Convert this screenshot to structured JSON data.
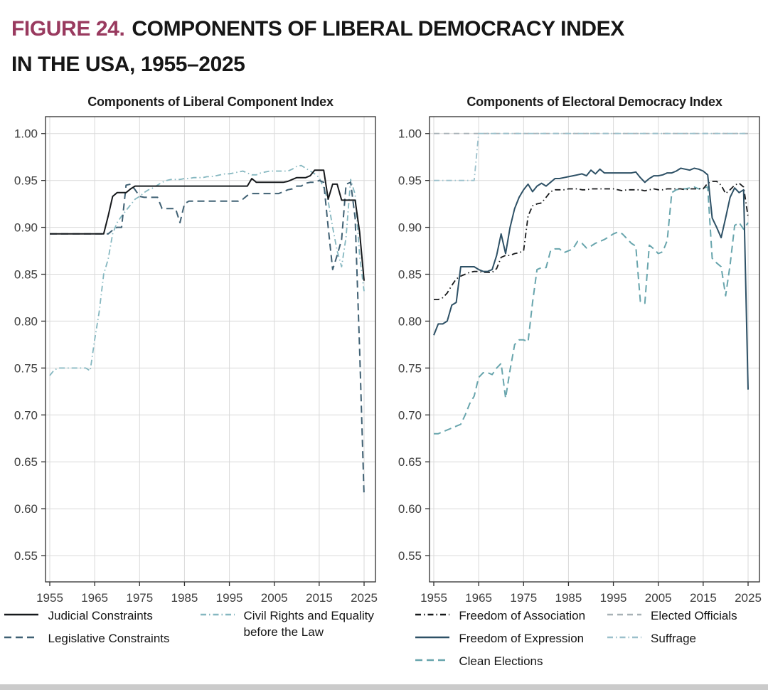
{
  "figure_title": {
    "label": "FIGURE 24.",
    "line1": "COMPONENTS OF LIBERAL DEMOCRACY INDEX",
    "line2": "IN THE USA, 1955–2025"
  },
  "theme": {
    "accent_label": "#993a5f",
    "grid": "#d9d9d9",
    "border": "#2e2e2e",
    "tick_text": "#3e3e3e",
    "background": "#ffffff",
    "footer_bar": "#cbcbcb"
  },
  "axes": {
    "ylim": [
      0.522,
      1.018
    ],
    "y_ticks": [
      1.0,
      0.95,
      0.9,
      0.85,
      0.8,
      0.75,
      0.7,
      0.65,
      0.6,
      0.55
    ],
    "x_ticks": [
      1955,
      1965,
      1975,
      1985,
      1995,
      2005,
      2015,
      2025
    ],
    "grid": true
  },
  "chart_data": [
    {
      "type": "line",
      "title": "Components of Liberal Component Index",
      "x_start": 1955,
      "x_end": 2025,
      "draw_order": [
        2,
        1,
        0
      ],
      "legend_columns": [
        [
          0,
          1
        ],
        [
          2
        ]
      ],
      "series": [
        {
          "name": "Judicial Constraints",
          "color": "#16191c",
          "dash": "",
          "width": 2,
          "values": [
            0.893,
            0.893,
            0.893,
            0.893,
            0.893,
            0.893,
            0.893,
            0.893,
            0.893,
            0.893,
            0.893,
            0.893,
            0.893,
            0.912,
            0.933,
            0.937,
            0.937,
            0.937,
            0.941,
            0.944,
            0.944,
            0.944,
            0.944,
            0.944,
            0.944,
            0.944,
            0.944,
            0.944,
            0.944,
            0.944,
            0.944,
            0.944,
            0.944,
            0.944,
            0.944,
            0.944,
            0.944,
            0.944,
            0.944,
            0.944,
            0.944,
            0.944,
            0.944,
            0.944,
            0.944,
            0.952,
            0.948,
            0.948,
            0.948,
            0.948,
            0.948,
            0.948,
            0.948,
            0.949,
            0.951,
            0.953,
            0.953,
            0.953,
            0.955,
            0.961,
            0.961,
            0.961,
            0.93,
            0.946,
            0.946,
            0.929,
            0.929,
            0.929,
            0.929,
            0.895,
            0.843
          ]
        },
        {
          "name": "Legislative Constraints",
          "color": "#3f6073",
          "dash": "10,6",
          "width": 2,
          "values": [
            0.893,
            0.893,
            0.893,
            0.893,
            0.893,
            0.893,
            0.893,
            0.893,
            0.893,
            0.893,
            0.893,
            0.893,
            0.893,
            0.893,
            0.897,
            0.9,
            0.9,
            0.945,
            0.946,
            0.94,
            0.933,
            0.932,
            0.932,
            0.932,
            0.932,
            0.92,
            0.92,
            0.92,
            0.92,
            0.905,
            0.925,
            0.928,
            0.928,
            0.928,
            0.928,
            0.928,
            0.928,
            0.928,
            0.928,
            0.928,
            0.928,
            0.928,
            0.928,
            0.93,
            0.934,
            0.936,
            0.936,
            0.936,
            0.936,
            0.936,
            0.936,
            0.936,
            0.938,
            0.94,
            0.941,
            0.944,
            0.944,
            0.947,
            0.948,
            0.948,
            0.95,
            0.948,
            0.9,
            0.855,
            0.87,
            0.887,
            0.946,
            0.948,
            0.91,
            0.77,
            0.613
          ]
        },
        {
          "name": "Civil Rights and Equality before the Law",
          "color": "#85b7c0",
          "dash": "8,4,1.5,4",
          "width": 1.8,
          "values": [
            0.742,
            0.748,
            0.75,
            0.75,
            0.75,
            0.75,
            0.75,
            0.75,
            0.75,
            0.747,
            0.78,
            0.81,
            0.85,
            0.866,
            0.893,
            0.905,
            0.912,
            0.918,
            0.924,
            0.93,
            0.933,
            0.937,
            0.94,
            0.942,
            0.945,
            0.948,
            0.95,
            0.951,
            0.951,
            0.951,
            0.952,
            0.952,
            0.953,
            0.953,
            0.953,
            0.954,
            0.954,
            0.955,
            0.956,
            0.957,
            0.957,
            0.958,
            0.959,
            0.96,
            0.958,
            0.956,
            0.956,
            0.958,
            0.959,
            0.96,
            0.96,
            0.96,
            0.96,
            0.96,
            0.962,
            0.965,
            0.966,
            0.963,
            0.96,
            0.957,
            0.953,
            0.942,
            0.928,
            0.9,
            0.875,
            0.858,
            0.89,
            0.951,
            0.935,
            0.87,
            0.832
          ]
        }
      ]
    },
    {
      "type": "line",
      "title": "Components of Electoral Democracy Index",
      "x_start": 1955,
      "x_end": 2025,
      "draw_order": [
        3,
        4,
        2,
        0,
        1
      ],
      "legend_columns": [
        [
          0,
          1,
          2
        ],
        [
          3,
          4
        ]
      ],
      "series": [
        {
          "name": "Freedom of Association",
          "color": "#17191b",
          "dash": "8,4,1.5,4",
          "width": 1.8,
          "values": [
            0.823,
            0.823,
            0.825,
            0.83,
            0.838,
            0.845,
            0.848,
            0.85,
            0.852,
            0.853,
            0.853,
            0.852,
            0.852,
            0.852,
            0.856,
            0.868,
            0.87,
            0.87,
            0.872,
            0.873,
            0.875,
            0.912,
            0.923,
            0.925,
            0.926,
            0.932,
            0.938,
            0.94,
            0.94,
            0.94,
            0.941,
            0.941,
            0.941,
            0.94,
            0.94,
            0.941,
            0.941,
            0.941,
            0.941,
            0.941,
            0.941,
            0.94,
            0.939,
            0.94,
            0.94,
            0.94,
            0.94,
            0.939,
            0.94,
            0.941,
            0.94,
            0.94,
            0.941,
            0.941,
            0.941,
            0.941,
            0.94,
            0.941,
            0.941,
            0.941,
            0.941,
            0.947,
            0.949,
            0.949,
            0.945,
            0.936,
            0.94,
            0.945,
            0.947,
            0.943,
            0.911
          ]
        },
        {
          "name": "Freedom of Expression",
          "color": "#2e5166",
          "dash": "",
          "width": 2,
          "values": [
            0.785,
            0.797,
            0.797,
            0.8,
            0.817,
            0.82,
            0.858,
            0.858,
            0.858,
            0.858,
            0.855,
            0.853,
            0.853,
            0.855,
            0.87,
            0.893,
            0.872,
            0.9,
            0.92,
            0.932,
            0.94,
            0.946,
            0.938,
            0.944,
            0.947,
            0.944,
            0.948,
            0.952,
            0.952,
            0.953,
            0.954,
            0.955,
            0.956,
            0.957,
            0.955,
            0.961,
            0.957,
            0.962,
            0.958,
            0.958,
            0.958,
            0.958,
            0.958,
            0.958,
            0.958,
            0.959,
            0.953,
            0.948,
            0.952,
            0.955,
            0.955,
            0.956,
            0.958,
            0.958,
            0.96,
            0.963,
            0.962,
            0.961,
            0.963,
            0.962,
            0.96,
            0.956,
            0.91,
            0.9,
            0.889,
            0.91,
            0.932,
            0.942,
            0.937,
            0.94,
            0.727
          ]
        },
        {
          "name": "Clean Elections",
          "color": "#68a5ad",
          "dash": "10,6",
          "width": 2,
          "values": [
            0.68,
            0.68,
            0.682,
            0.684,
            0.686,
            0.688,
            0.69,
            0.7,
            0.712,
            0.72,
            0.74,
            0.745,
            0.745,
            0.743,
            0.75,
            0.755,
            0.718,
            0.748,
            0.775,
            0.78,
            0.78,
            0.778,
            0.82,
            0.855,
            0.857,
            0.857,
            0.875,
            0.877,
            0.877,
            0.873,
            0.875,
            0.877,
            0.885,
            0.883,
            0.878,
            0.88,
            0.883,
            0.885,
            0.887,
            0.89,
            0.893,
            0.895,
            0.893,
            0.888,
            0.883,
            0.88,
            0.821,
            0.819,
            0.881,
            0.877,
            0.872,
            0.874,
            0.886,
            0.937,
            0.94,
            0.941,
            0.941,
            0.942,
            0.943,
            0.941,
            0.942,
            0.943,
            0.867,
            0.862,
            0.858,
            0.827,
            0.86,
            0.902,
            0.905,
            0.898,
            0.905
          ]
        },
        {
          "name": "Elected Officials",
          "color": "#a7b1b6",
          "dash": "8,6",
          "width": 1.8,
          "values": [
            1,
            1,
            1,
            1,
            1,
            1,
            1,
            1,
            1,
            1,
            1,
            1,
            1,
            1,
            1,
            1,
            1,
            1,
            1,
            1,
            1,
            1,
            1,
            1,
            1,
            1,
            1,
            1,
            1,
            1,
            1,
            1,
            1,
            1,
            1,
            1,
            1,
            1,
            1,
            1,
            1,
            1,
            1,
            1,
            1,
            1,
            1,
            1,
            1,
            1,
            1,
            1,
            1,
            1,
            1,
            1,
            1,
            1,
            1,
            1,
            1,
            1,
            1,
            1,
            1,
            1,
            1,
            1,
            1,
            1,
            1
          ]
        },
        {
          "name": "Suffrage",
          "color": "#9bc0cb",
          "dash": "8,4,1.5,4",
          "width": 1.8,
          "values": [
            0.95,
            0.95,
            0.95,
            0.95,
            0.95,
            0.95,
            0.95,
            0.95,
            0.95,
            0.95,
            1,
            1,
            1,
            1,
            1,
            1,
            1,
            1,
            1,
            1,
            1,
            1,
            1,
            1,
            1,
            1,
            1,
            1,
            1,
            1,
            1,
            1,
            1,
            1,
            1,
            1,
            1,
            1,
            1,
            1,
            1,
            1,
            1,
            1,
            1,
            1,
            1,
            1,
            1,
            1,
            1,
            1,
            1,
            1,
            1,
            1,
            1,
            1,
            1,
            1,
            1,
            1,
            1,
            1,
            1,
            1,
            1,
            1,
            1,
            1,
            1
          ]
        }
      ]
    }
  ]
}
